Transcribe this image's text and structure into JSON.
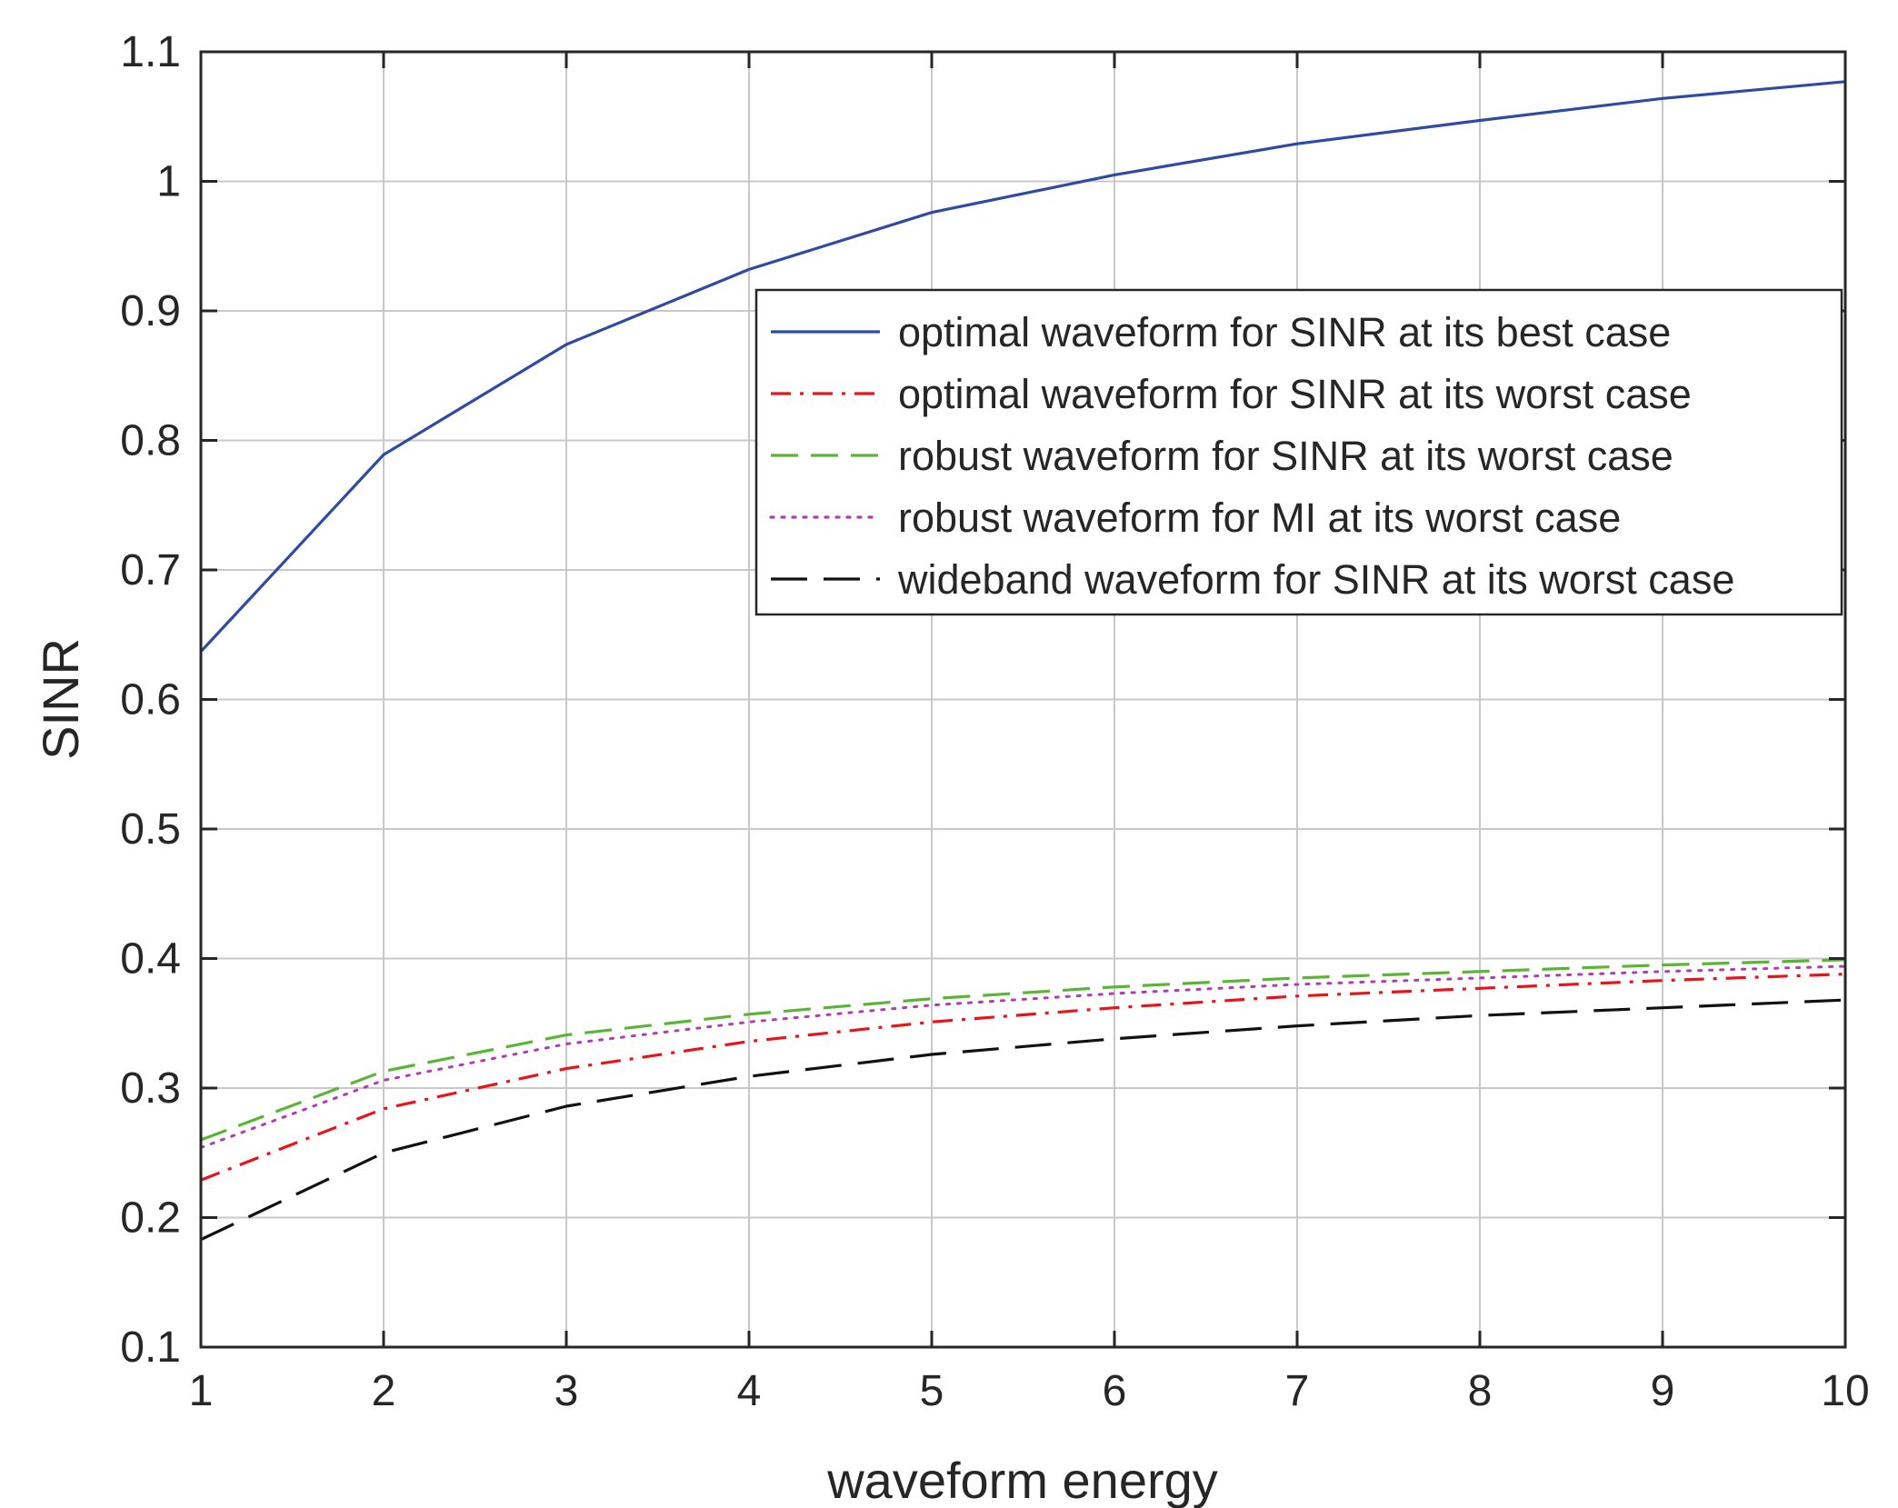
{
  "chart_data": {
    "type": "line",
    "title": "",
    "xlabel": "waveform energy",
    "ylabel": "SINR",
    "xlim": [
      1,
      10
    ],
    "ylim": [
      0.1,
      1.1
    ],
    "xticks": [
      1,
      2,
      3,
      4,
      5,
      6,
      7,
      8,
      9,
      10
    ],
    "yticks": [
      0.1,
      0.2,
      0.3,
      0.4,
      0.5,
      0.6,
      0.7,
      0.8,
      0.9,
      1,
      1.1
    ],
    "xtick_labels": [
      "1",
      "2",
      "3",
      "4",
      "5",
      "6",
      "7",
      "8",
      "9",
      "10"
    ],
    "ytick_labels": [
      "0.1",
      "0.2",
      "0.3",
      "0.4",
      "0.5",
      "0.6",
      "0.7",
      "0.8",
      "0.9",
      "1",
      "1.1"
    ],
    "grid": true,
    "legend_position": "top-right",
    "x": [
      1,
      2,
      3,
      4,
      5,
      6,
      7,
      8,
      9,
      10
    ],
    "series": [
      {
        "name": "optimal waveform for SINR at its best case",
        "color": "#2f4aa3",
        "style": "solid",
        "values": [
          0.637,
          0.789,
          0.874,
          0.932,
          0.976,
          1.005,
          1.029,
          1.047,
          1.064,
          1.077
        ]
      },
      {
        "name": "optimal waveform for SINR at its worst case",
        "color": "#e8141b",
        "style": "dashdot",
        "values": [
          0.229,
          0.284,
          0.315,
          0.336,
          0.351,
          0.362,
          0.371,
          0.377,
          0.383,
          0.388
        ]
      },
      {
        "name": "robust waveform for SINR at its worst case",
        "color": "#5ab535",
        "style": "dashed",
        "values": [
          0.26,
          0.313,
          0.341,
          0.357,
          0.369,
          0.378,
          0.385,
          0.39,
          0.395,
          0.399
        ]
      },
      {
        "name": "robust waveform for MI at its worst case",
        "color": "#b23ab5",
        "style": "dotted",
        "values": [
          0.254,
          0.306,
          0.334,
          0.351,
          0.364,
          0.373,
          0.38,
          0.385,
          0.39,
          0.394
        ]
      },
      {
        "name": "wideband waveform for SINR at its worst case",
        "color": "#111111",
        "style": "longdash",
        "values": [
          0.183,
          0.25,
          0.286,
          0.309,
          0.326,
          0.338,
          0.348,
          0.356,
          0.362,
          0.368
        ]
      }
    ]
  }
}
